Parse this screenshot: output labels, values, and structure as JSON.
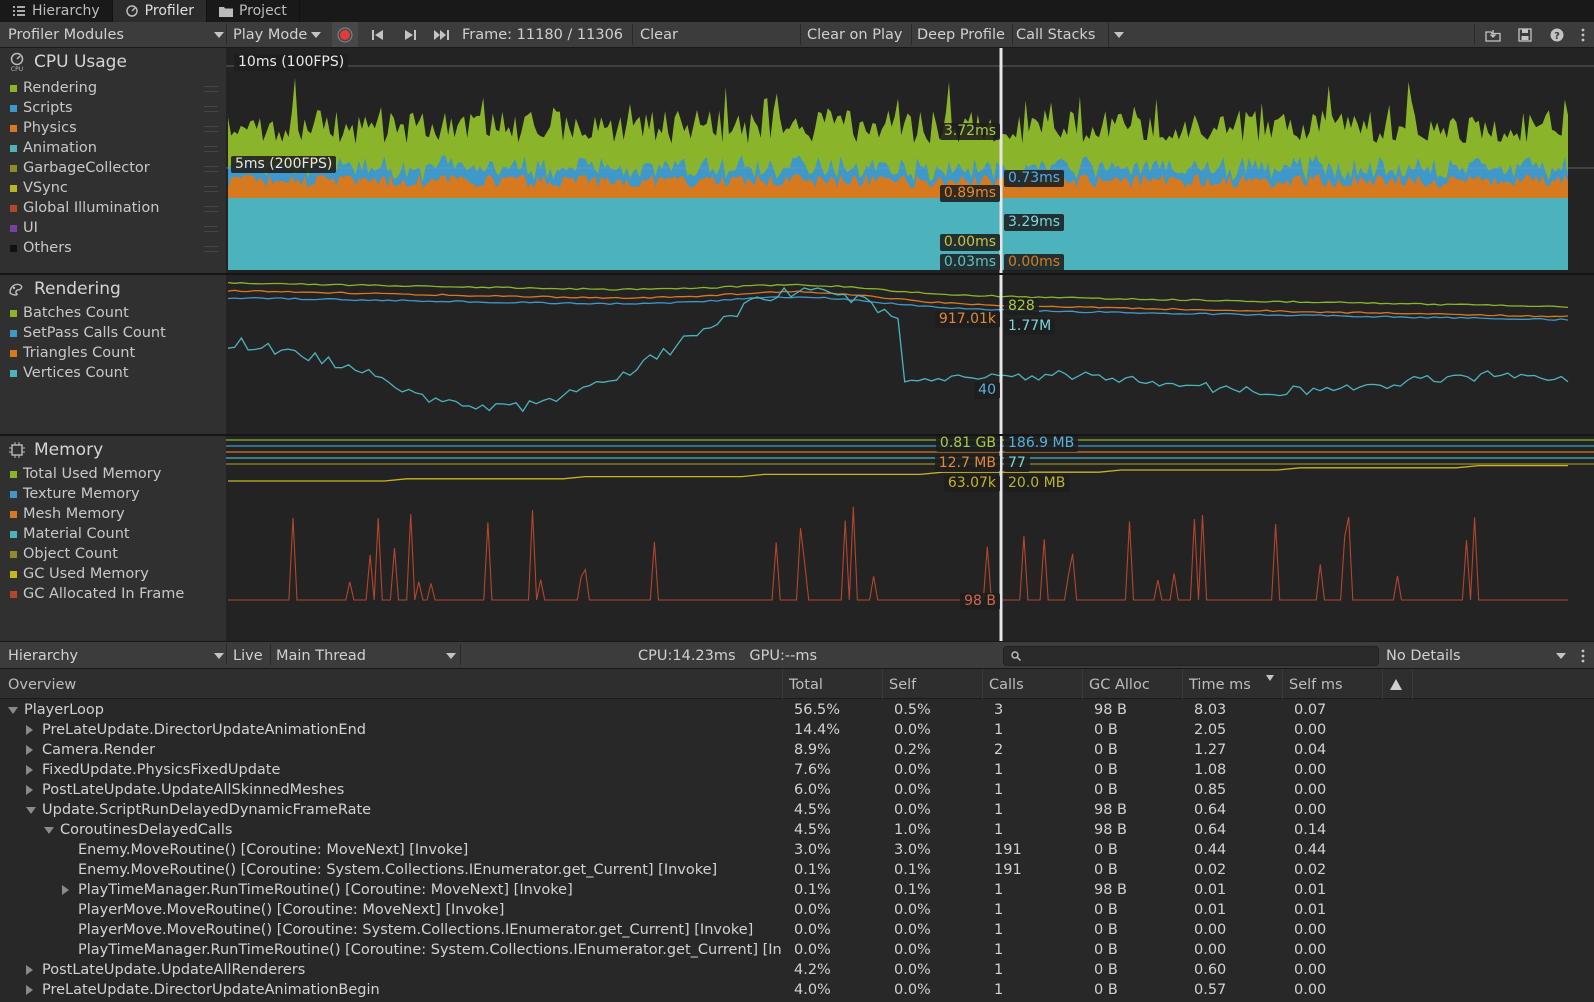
{
  "window_tabs": [
    {
      "label": "Hierarchy",
      "icon": "list-icon"
    },
    {
      "label": "Profiler",
      "icon": "profiler-icon"
    },
    {
      "label": "Project",
      "icon": "folder-icon"
    }
  ],
  "toolbar": {
    "modules_label": "Profiler Modules",
    "play_mode_label": "Play Mode",
    "frame_label": "Frame: 11180 / 11306",
    "clear_label": "Clear",
    "clear_on_play_label": "Clear on Play",
    "deep_profile_label": "Deep Profile",
    "call_stacks_label": "Call Stacks",
    "record_color": "#e23b3b"
  },
  "modules": {
    "cpu": {
      "title": "CPU Usage",
      "legend": [
        {
          "label": "Rendering",
          "color": "#8ab52a"
        },
        {
          "label": "Scripts",
          "color": "#3e98c9"
        },
        {
          "label": "Physics",
          "color": "#d7791f"
        },
        {
          "label": "Animation",
          "color": "#4cb3bd"
        },
        {
          "label": "GarbageCollector",
          "color": "#8f8a2b"
        },
        {
          "label": "VSync",
          "color": "#b9b52a"
        },
        {
          "label": "Global Illumination",
          "color": "#b5452d"
        },
        {
          "label": "UI",
          "color": "#7a3fa3"
        },
        {
          "label": "Others",
          "color": "#111111"
        }
      ],
      "line_labels": [
        "10ms (100FPS)",
        "5ms (200FPS)"
      ],
      "values_left": [
        "3.72ms",
        "0.89ms",
        "0.00ms",
        "0.03ms"
      ],
      "values_right": [
        "0.73ms",
        "3.29ms",
        "0.00ms"
      ]
    },
    "rendering": {
      "title": "Rendering",
      "legend": [
        {
          "label": "Batches Count",
          "color": "#8ab52a"
        },
        {
          "label": "SetPass Calls Count",
          "color": "#3e98c9"
        },
        {
          "label": "Triangles Count",
          "color": "#d7791f"
        },
        {
          "label": "Vertices Count",
          "color": "#4cb3bd"
        }
      ],
      "values_left": [
        "917.01k",
        "40"
      ],
      "values_right": [
        "828",
        "1.77M"
      ]
    },
    "memory": {
      "title": "Memory",
      "legend": [
        {
          "label": "Total Used Memory",
          "color": "#8ab52a"
        },
        {
          "label": "Texture Memory",
          "color": "#3e98c9"
        },
        {
          "label": "Mesh Memory",
          "color": "#d7791f"
        },
        {
          "label": "Material Count",
          "color": "#4cb3bd"
        },
        {
          "label": "Object Count",
          "color": "#8f8a2b"
        },
        {
          "label": "GC Used Memory",
          "color": "#c9b420"
        },
        {
          "label": "GC Allocated In Frame",
          "color": "#b5452d"
        }
      ],
      "values_left": [
        "0.81 GB",
        "12.7 MB",
        "63.07k",
        "98 B"
      ],
      "values_right": [
        "186.9 MB",
        "77",
        "20.0 MB"
      ]
    }
  },
  "hierarchy_bar": {
    "view_label": "Hierarchy",
    "live_label": "Live",
    "thread_label": "Main Thread",
    "timing": "CPU:14.23ms   GPU:--ms",
    "details_label": "No Details"
  },
  "table": {
    "columns": [
      "Overview",
      "Total",
      "Self",
      "Calls",
      "GC Alloc",
      "Time ms",
      "Self ms"
    ],
    "rows": [
      {
        "name": "PlayerLoop",
        "depth": 0,
        "expander": "open",
        "total": "56.5%",
        "self": "0.5%",
        "calls": "3",
        "gc": "98 B",
        "time": "8.03",
        "selfms": "0.07"
      },
      {
        "name": "PreLateUpdate.DirectorUpdateAnimationEnd",
        "depth": 1,
        "expander": "closed",
        "total": "14.4%",
        "self": "0.0%",
        "calls": "1",
        "gc": "0 B",
        "time": "2.05",
        "selfms": "0.00"
      },
      {
        "name": "Camera.Render",
        "depth": 1,
        "expander": "closed",
        "total": "8.9%",
        "self": "0.2%",
        "calls": "2",
        "gc": "0 B",
        "time": "1.27",
        "selfms": "0.04"
      },
      {
        "name": "FixedUpdate.PhysicsFixedUpdate",
        "depth": 1,
        "expander": "closed",
        "total": "7.6%",
        "self": "0.0%",
        "calls": "1",
        "gc": "0 B",
        "time": "1.08",
        "selfms": "0.00"
      },
      {
        "name": "PostLateUpdate.UpdateAllSkinnedMeshes",
        "depth": 1,
        "expander": "closed",
        "total": "6.0%",
        "self": "0.0%",
        "calls": "1",
        "gc": "0 B",
        "time": "0.85",
        "selfms": "0.00"
      },
      {
        "name": "Update.ScriptRunDelayedDynamicFrameRate",
        "depth": 1,
        "expander": "open",
        "total": "4.5%",
        "self": "0.0%",
        "calls": "1",
        "gc": "98 B",
        "time": "0.64",
        "selfms": "0.00"
      },
      {
        "name": "CoroutinesDelayedCalls",
        "depth": 2,
        "expander": "open",
        "total": "4.5%",
        "self": "1.0%",
        "calls": "1",
        "gc": "98 B",
        "time": "0.64",
        "selfms": "0.14"
      },
      {
        "name": "Enemy.MoveRoutine() [Coroutine: MoveNext] [Invoke]",
        "depth": 3,
        "expander": "none",
        "total": "3.0%",
        "self": "3.0%",
        "calls": "191",
        "gc": "0 B",
        "time": "0.44",
        "selfms": "0.44"
      },
      {
        "name": "Enemy.MoveRoutine() [Coroutine: System.Collections.IEnumerator.get_Current] [Invoke]",
        "depth": 3,
        "expander": "none",
        "total": "0.1%",
        "self": "0.1%",
        "calls": "191",
        "gc": "0 B",
        "time": "0.02",
        "selfms": "0.02"
      },
      {
        "name": "PlayTimeManager.RunTimeRoutine() [Coroutine: MoveNext] [Invoke]",
        "depth": 3,
        "expander": "closed",
        "total": "0.1%",
        "self": "0.1%",
        "calls": "1",
        "gc": "98 B",
        "time": "0.01",
        "selfms": "0.01"
      },
      {
        "name": "PlayerMove.MoveRoutine() [Coroutine: MoveNext] [Invoke]",
        "depth": 3,
        "expander": "none",
        "total": "0.0%",
        "self": "0.0%",
        "calls": "1",
        "gc": "0 B",
        "time": "0.01",
        "selfms": "0.01"
      },
      {
        "name": "PlayerMove.MoveRoutine() [Coroutine: System.Collections.IEnumerator.get_Current] [Invoke]",
        "depth": 3,
        "expander": "none",
        "total": "0.0%",
        "self": "0.0%",
        "calls": "1",
        "gc": "0 B",
        "time": "0.00",
        "selfms": "0.00"
      },
      {
        "name": "PlayTimeManager.RunTimeRoutine() [Coroutine: System.Collections.IEnumerator.get_Current] [Inv",
        "depth": 3,
        "expander": "none",
        "total": "0.0%",
        "self": "0.0%",
        "calls": "1",
        "gc": "0 B",
        "time": "0.00",
        "selfms": "0.00"
      },
      {
        "name": "PostLateUpdate.UpdateAllRenderers",
        "depth": 1,
        "expander": "closed",
        "total": "4.2%",
        "self": "0.0%",
        "calls": "1",
        "gc": "0 B",
        "time": "0.60",
        "selfms": "0.00"
      },
      {
        "name": "PreLateUpdate.DirectorUpdateAnimationBegin",
        "depth": 1,
        "expander": "closed",
        "total": "4.0%",
        "self": "0.0%",
        "calls": "1",
        "gc": "0 B",
        "time": "0.57",
        "selfms": "0.00"
      }
    ]
  }
}
